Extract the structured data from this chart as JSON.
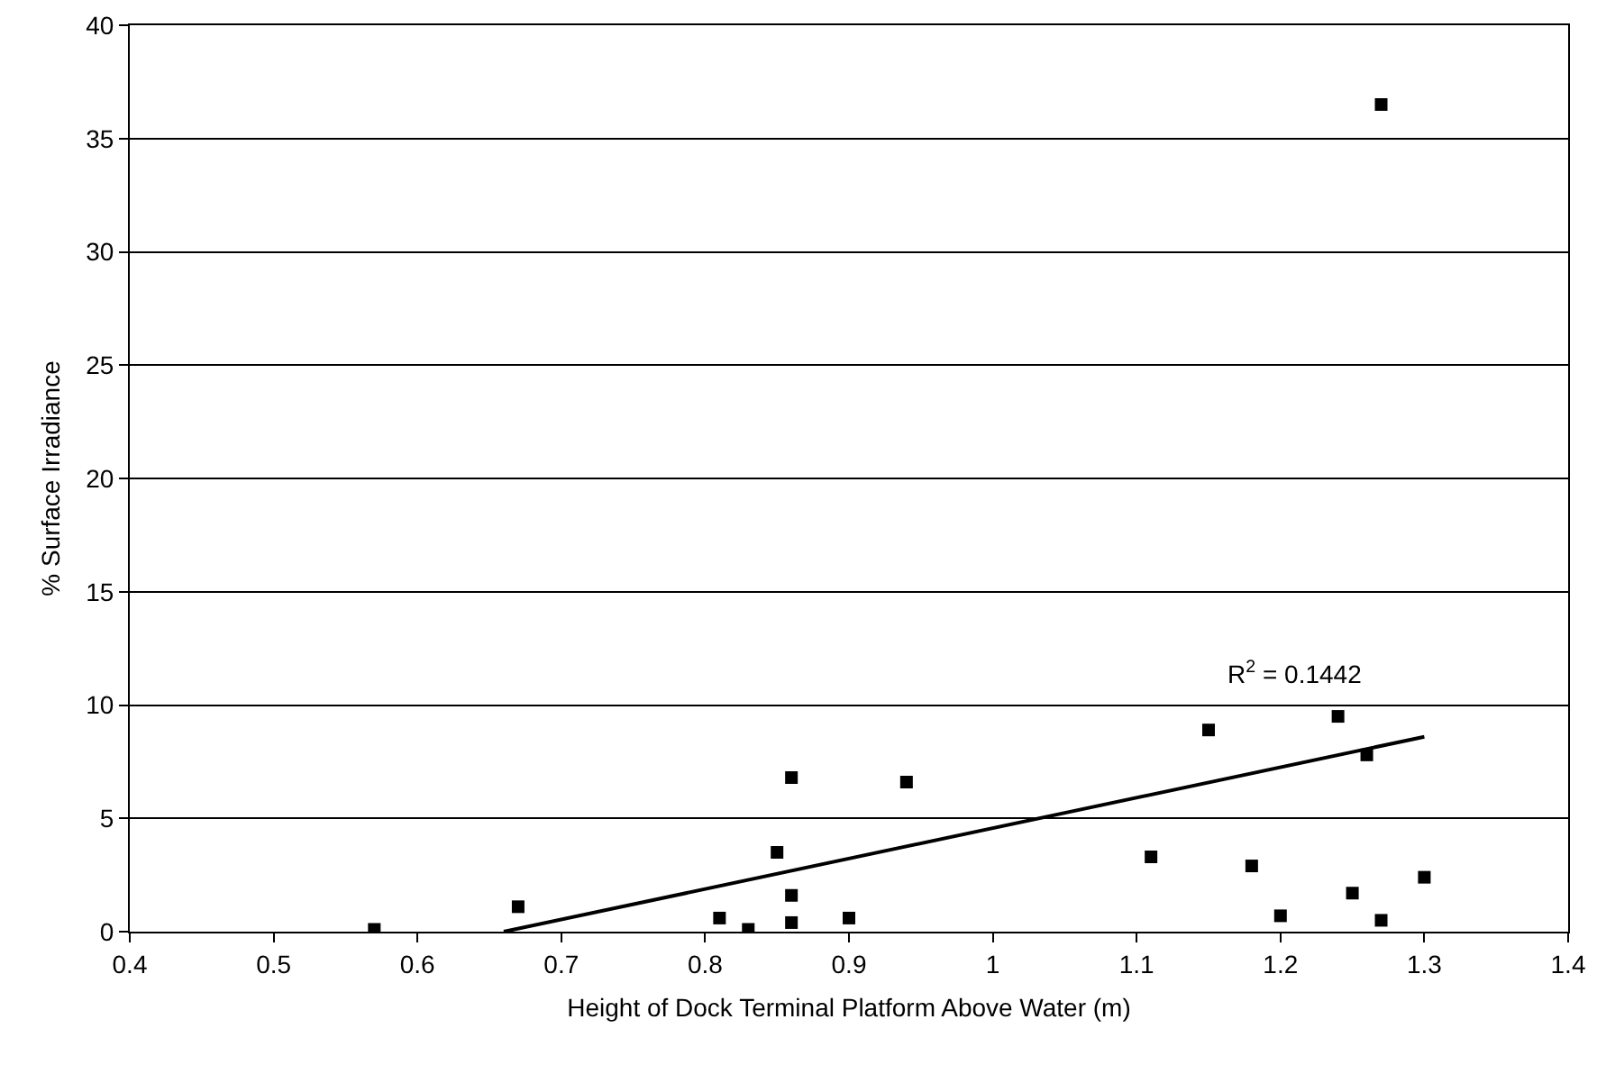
{
  "chart_data": {
    "type": "scatter",
    "xlabel": "Height of Dock Terminal Platform Above Water (m)",
    "ylabel": "% Surface Irradiance",
    "xlim": [
      0.4,
      1.4
    ],
    "xticks": [
      0.4,
      0.5,
      0.6,
      0.7,
      0.8,
      0.9,
      1,
      1.1,
      1.2,
      1.3,
      1.4
    ],
    "ylim": [
      0,
      40
    ],
    "yticks": [
      0,
      5,
      10,
      15,
      20,
      25,
      30,
      35,
      40
    ],
    "grid": "y",
    "legend": false,
    "marker": "square",
    "series": [
      {
        "color": "#000000",
        "x": [
          0.57,
          0.67,
          0.81,
          0.83,
          0.85,
          0.86,
          0.86,
          0.86,
          0.9,
          0.94,
          1.11,
          1.15,
          1.18,
          1.2,
          1.24,
          1.25,
          1.26,
          1.27,
          1.27,
          1.3
        ],
        "values": [
          0.1,
          1.1,
          0.6,
          0.1,
          3.5,
          6.8,
          1.6,
          0.4,
          0.6,
          6.6,
          3.3,
          8.9,
          2.9,
          0.7,
          9.5,
          1.7,
          7.8,
          0.5,
          36.5,
          2.4
        ]
      },
      {
        "type": "line",
        "color": "#000000",
        "marker": "none",
        "line_style": "solid",
        "x": [
          0.66,
          1.3
        ],
        "values": [
          0,
          8.6
        ]
      }
    ],
    "annotations": [
      "R$^{2}$ = 0.1442"
    ]
  }
}
